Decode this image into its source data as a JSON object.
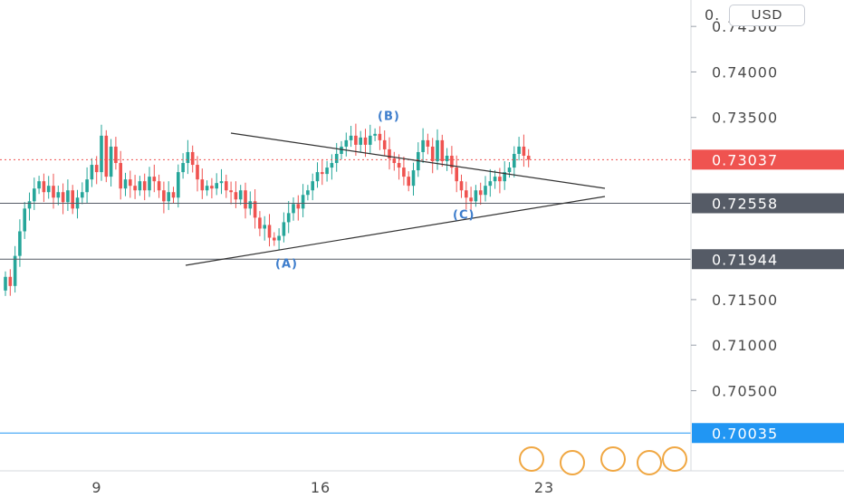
{
  "currency_button": "USD",
  "colors": {
    "up": "#26a69a",
    "down": "#ef5350",
    "pattern_line": "#333333",
    "wave_label": "#3d7dcc",
    "level_line": "#555b66",
    "blue_level": "#2196f3"
  },
  "chart_data": {
    "type": "candlestick",
    "title": "",
    "x_ticks": [
      "9",
      "16",
      "23"
    ],
    "y_ticks": [
      0.745,
      0.74,
      0.735,
      0.715,
      0.71,
      0.705
    ],
    "ylim": [
      0.6962,
      0.7479
    ],
    "grid": false,
    "price_levels": [
      {
        "label": "0.73037",
        "value": 0.73037,
        "style": "current-dotted",
        "color": "#ef5350"
      },
      {
        "label": "0.72558",
        "value": 0.72558,
        "style": "solid",
        "color": "#555b66"
      },
      {
        "label": "0.71944",
        "value": 0.71944,
        "style": "solid",
        "color": "#555b66"
      },
      {
        "label": "0.70035",
        "value": 0.70035,
        "style": "solid",
        "color": "#2196f3"
      }
    ],
    "wave_labels": [
      {
        "text": "(A)",
        "value": 0.719
      },
      {
        "text": "(B)",
        "value": 0.7352
      },
      {
        "text": "(C)",
        "value": 0.7244
      }
    ],
    "candles_close": [
      0.7175,
      0.7165,
      0.7198,
      0.7225,
      0.725,
      0.7258,
      0.7272,
      0.728,
      0.7268,
      0.7275,
      0.7262,
      0.7268,
      0.7257,
      0.727,
      0.725,
      0.7262,
      0.7268,
      0.7282,
      0.7298,
      0.729,
      0.733,
      0.7285,
      0.7318,
      0.73,
      0.7272,
      0.7282,
      0.7275,
      0.727,
      0.728,
      0.727,
      0.7285,
      0.728,
      0.727,
      0.7258,
      0.7268,
      0.7262,
      0.729,
      0.73,
      0.7312,
      0.7298,
      0.7282,
      0.727,
      0.7275,
      0.7272,
      0.7278,
      0.728,
      0.727,
      0.7268,
      0.726,
      0.727,
      0.725,
      0.7258,
      0.724,
      0.7228,
      0.7232,
      0.7218,
      0.7215,
      0.722,
      0.7235,
      0.7245,
      0.7255,
      0.725,
      0.7265,
      0.727,
      0.728,
      0.729,
      0.7288,
      0.7295,
      0.73,
      0.731,
      0.7318,
      0.7325,
      0.733,
      0.732,
      0.7328,
      0.732,
      0.733,
      0.7332,
      0.7325,
      0.7315,
      0.7305,
      0.73,
      0.7295,
      0.7285,
      0.7275,
      0.7292,
      0.7312,
      0.7325,
      0.7318,
      0.7302,
      0.7325,
      0.7302,
      0.7308,
      0.7295,
      0.728,
      0.727,
      0.7262,
      0.7258,
      0.727,
      0.7265,
      0.7275,
      0.728,
      0.7285,
      0.728,
      0.729,
      0.7295,
      0.731,
      0.7318,
      0.7308,
      0.73037
    ]
  }
}
